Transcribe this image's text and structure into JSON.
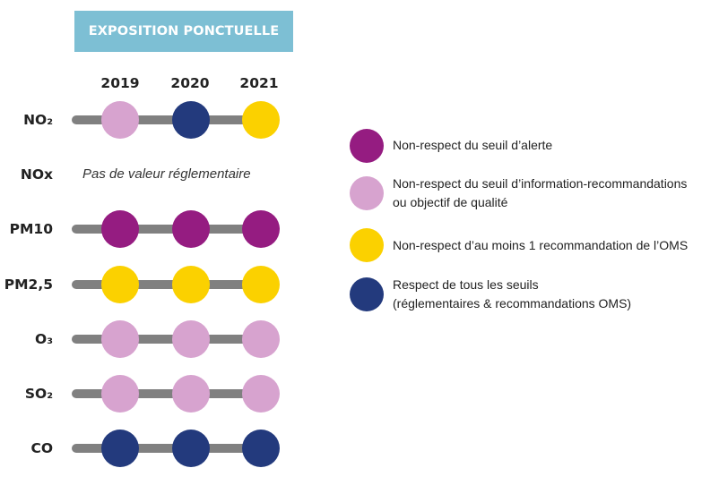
{
  "header": {
    "title": "EXPOSITION PONCTUELLE"
  },
  "years": [
    "2019",
    "2020",
    "2021"
  ],
  "colors": {
    "alerte": "#951c81",
    "information": "#d7a3cf",
    "oms": "#fbd100",
    "respect": "#233a7d"
  },
  "pollutants": [
    {
      "label": "NO₂",
      "values": [
        "information",
        "respect",
        "oms"
      ]
    },
    {
      "label": "NOx",
      "note": "Pas de valeur réglementaire"
    },
    {
      "label": "PM10",
      "values": [
        "alerte",
        "alerte",
        "alerte"
      ]
    },
    {
      "label": "PM2,5",
      "values": [
        "oms",
        "oms",
        "oms"
      ]
    },
    {
      "label": "O₃",
      "values": [
        "information",
        "information",
        "information"
      ]
    },
    {
      "label": "SO₂",
      "values": [
        "information",
        "information",
        "information"
      ]
    },
    {
      "label": "CO",
      "values": [
        "respect",
        "respect",
        "respect"
      ]
    }
  ],
  "legend": [
    {
      "key": "alerte",
      "lines": [
        "Non-respect du seuil d’alerte"
      ]
    },
    {
      "key": "information",
      "lines": [
        "Non-respect du seuil d’information-recommandations",
        "ou objectif de qualité"
      ]
    },
    {
      "key": "oms",
      "lines": [
        "Non-respect d’au moins 1 recommandation de l’OMS"
      ]
    },
    {
      "key": "respect",
      "lines": [
        "Respect de tous les seuils",
        "(réglementaires & recommandations OMS)"
      ]
    }
  ]
}
